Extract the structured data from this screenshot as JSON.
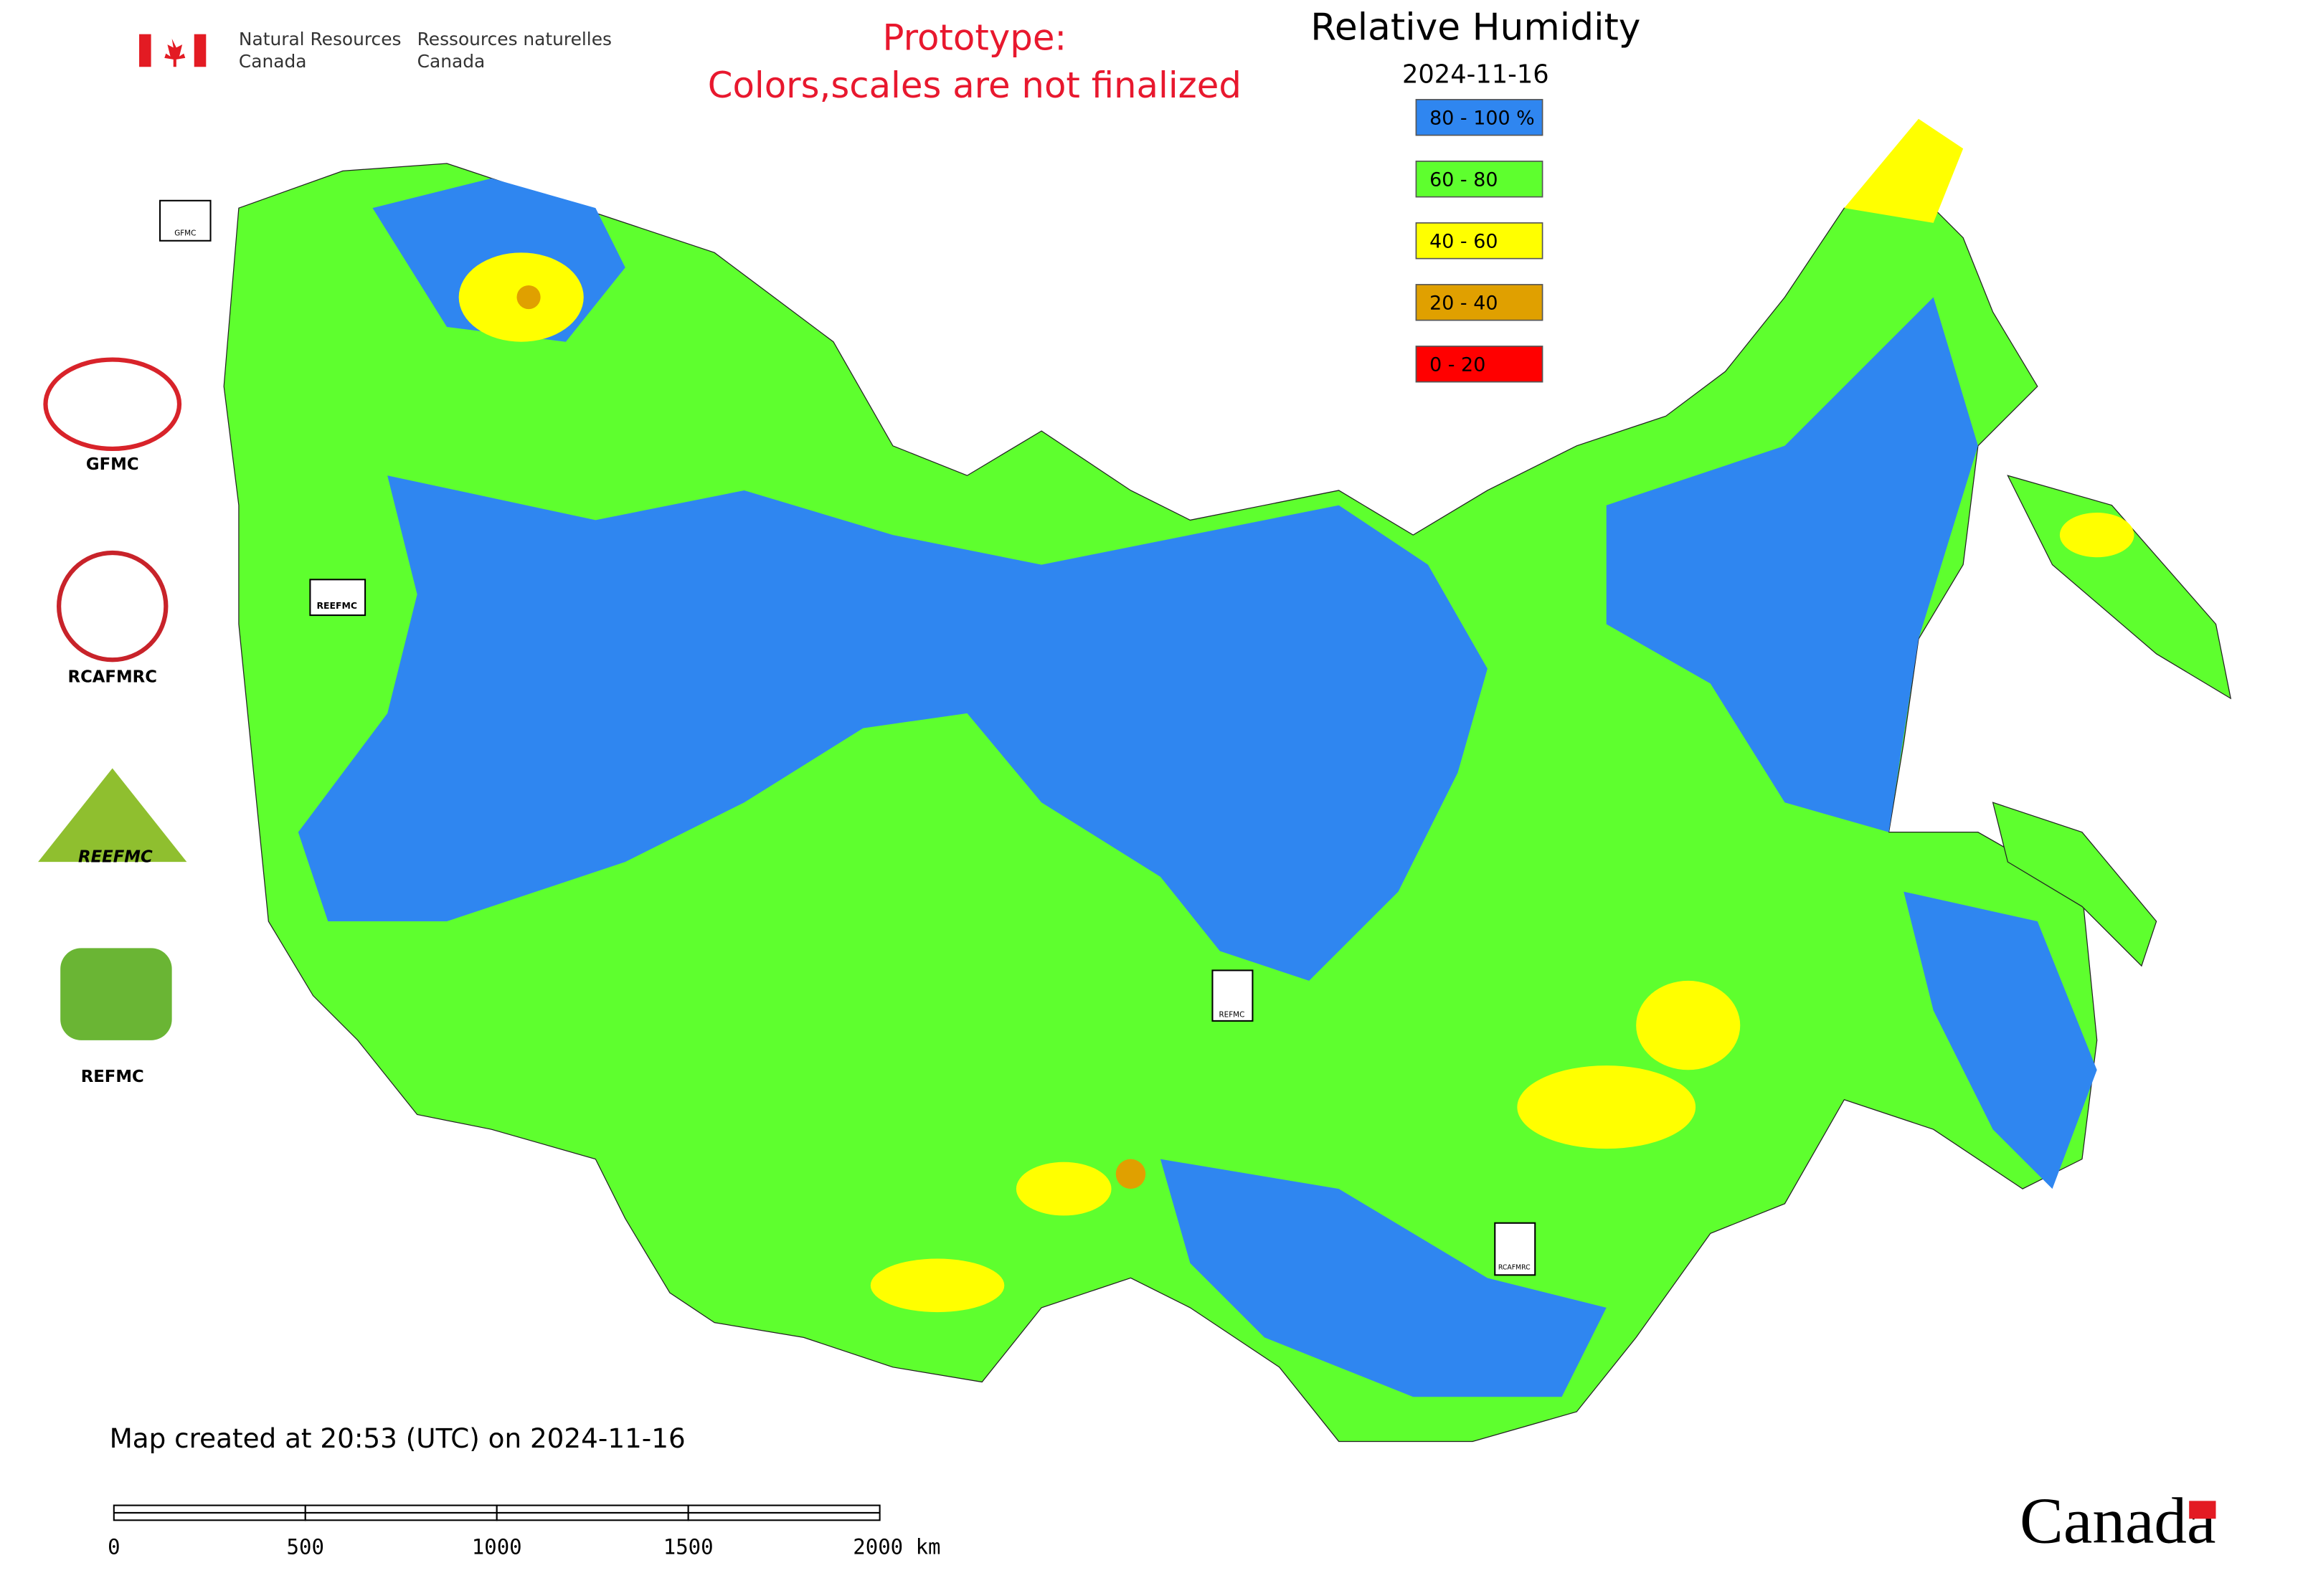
{
  "header": {
    "department_en": [
      "Natural Resources",
      "Canada"
    ],
    "department_fr": [
      "Ressources naturelles",
      "Canada"
    ]
  },
  "notice": [
    "Prototype:",
    "Colors,scales are not finalized"
  ],
  "title": "Relative Humidity",
  "date": "2024-11-16",
  "legend": [
    {
      "label": "80 - 100 %",
      "color": "#2f86f0"
    },
    {
      "label": "60 - 80",
      "color": "#5eff2e"
    },
    {
      "label": "40 - 60",
      "color": "#ffff00"
    },
    {
      "label": "20 - 40",
      "color": "#e0a000"
    },
    {
      "label": "0 - 20",
      "color": "#ff0000"
    }
  ],
  "logos": [
    "GFMC",
    "RCAFMRC",
    "REEFMC",
    "REFMC"
  ],
  "map_markers": [
    "GFMC",
    "REEFMC",
    "REFMC",
    "RCAFMRC"
  ],
  "footer": "Map created at 20:53 (UTC) on 2024-11-16",
  "scale_bar": [
    "0",
    "500",
    "1000",
    "1500",
    "2000 km"
  ],
  "wordmark": "Canada"
}
